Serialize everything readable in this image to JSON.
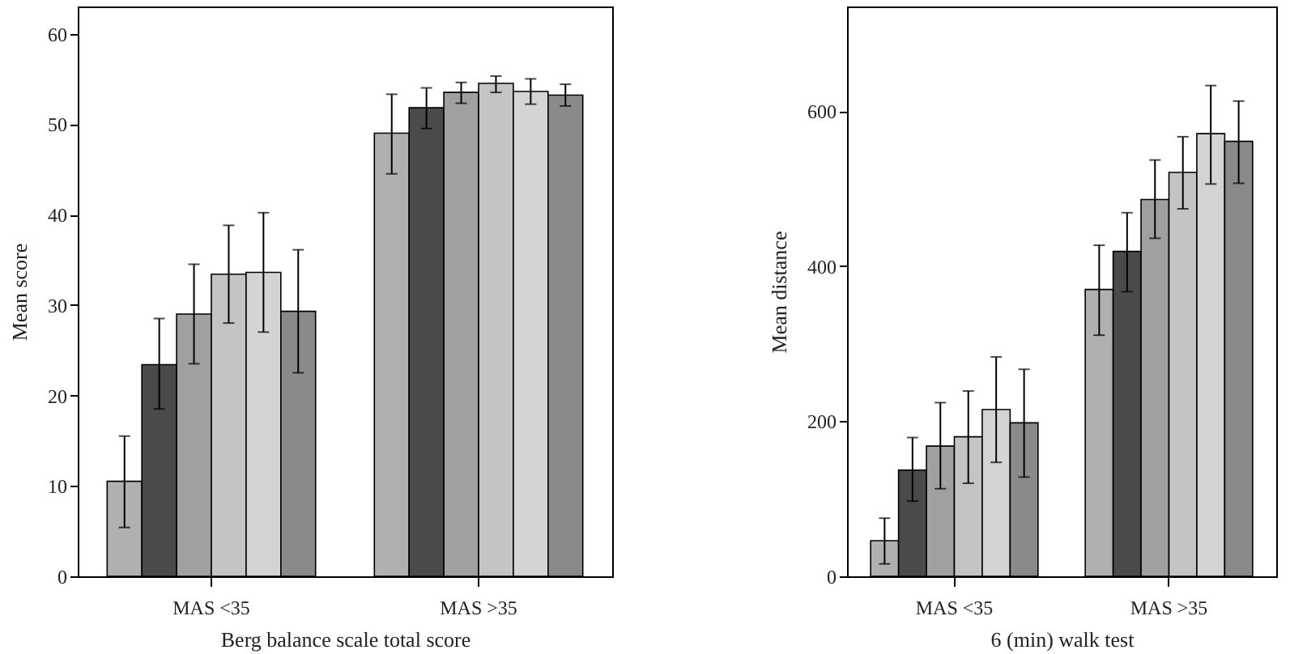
{
  "chart_data": [
    {
      "type": "bar",
      "xlabel": "Berg balance scale total score",
      "ylabel": "Mean score",
      "categories": [
        "MAS <35",
        "MAS >35"
      ],
      "ylim": [
        0,
        63
      ],
      "yticks": [
        0,
        10,
        20,
        30,
        40,
        50,
        60
      ],
      "grid": false,
      "series": [
        {
          "color": "#b0b0b0",
          "values": [
            10.5,
            49
          ],
          "errors": [
            [
              5.4,
              15.5
            ],
            [
              44.5,
              53.3
            ]
          ]
        },
        {
          "color": "#4a4a4a",
          "values": [
            23.4,
            51.8
          ],
          "errors": [
            [
              18.5,
              28.5
            ],
            [
              49.5,
              54
            ]
          ]
        },
        {
          "color": "#a0a0a0",
          "values": [
            29,
            53.5
          ],
          "errors": [
            [
              23.5,
              34.5
            ],
            [
              52.3,
              54.6
            ]
          ]
        },
        {
          "color": "#c4c4c4",
          "values": [
            33.4,
            54.5
          ],
          "errors": [
            [
              28,
              38.8
            ],
            [
              53.5,
              55.3
            ]
          ]
        },
        {
          "color": "#d4d4d4",
          "values": [
            33.6,
            53.6
          ],
          "errors": [
            [
              27,
              40.2
            ],
            [
              52.2,
              55
            ]
          ]
        },
        {
          "color": "#8a8a8a",
          "values": [
            29.3,
            53.2
          ],
          "errors": [
            [
              22.5,
              36.1
            ],
            [
              52,
              54.4
            ]
          ]
        }
      ]
    },
    {
      "type": "bar",
      "xlabel": "6 (min) walk test",
      "ylabel": "Mean distance",
      "categories": [
        "MAS <35",
        "MAS >35"
      ],
      "ylim": [
        0,
        735
      ],
      "yticks": [
        0,
        200,
        400,
        600
      ],
      "grid": false,
      "series": [
        {
          "color": "#b0b0b0",
          "values": [
            46,
            370
          ],
          "errors": [
            [
              16,
              75
            ],
            [
              311,
              427
            ]
          ]
        },
        {
          "color": "#4a4a4a",
          "values": [
            137,
            419
          ],
          "errors": [
            [
              97,
              179
            ],
            [
              367,
              469
            ]
          ]
        },
        {
          "color": "#a0a0a0",
          "values": [
            168,
            486
          ],
          "errors": [
            [
              113,
              224
            ],
            [
              436,
              537
            ]
          ]
        },
        {
          "color": "#c4c4c4",
          "values": [
            180,
            521
          ],
          "errors": [
            [
              120,
              239
            ],
            [
              474,
              567
            ]
          ]
        },
        {
          "color": "#d4d4d4",
          "values": [
            215,
            571
          ],
          "errors": [
            [
              147,
              283
            ],
            [
              506,
              633
            ]
          ]
        },
        {
          "color": "#8a8a8a",
          "values": [
            198,
            561
          ],
          "errors": [
            [
              128,
              267
            ],
            [
              507,
              613
            ]
          ]
        }
      ]
    }
  ]
}
